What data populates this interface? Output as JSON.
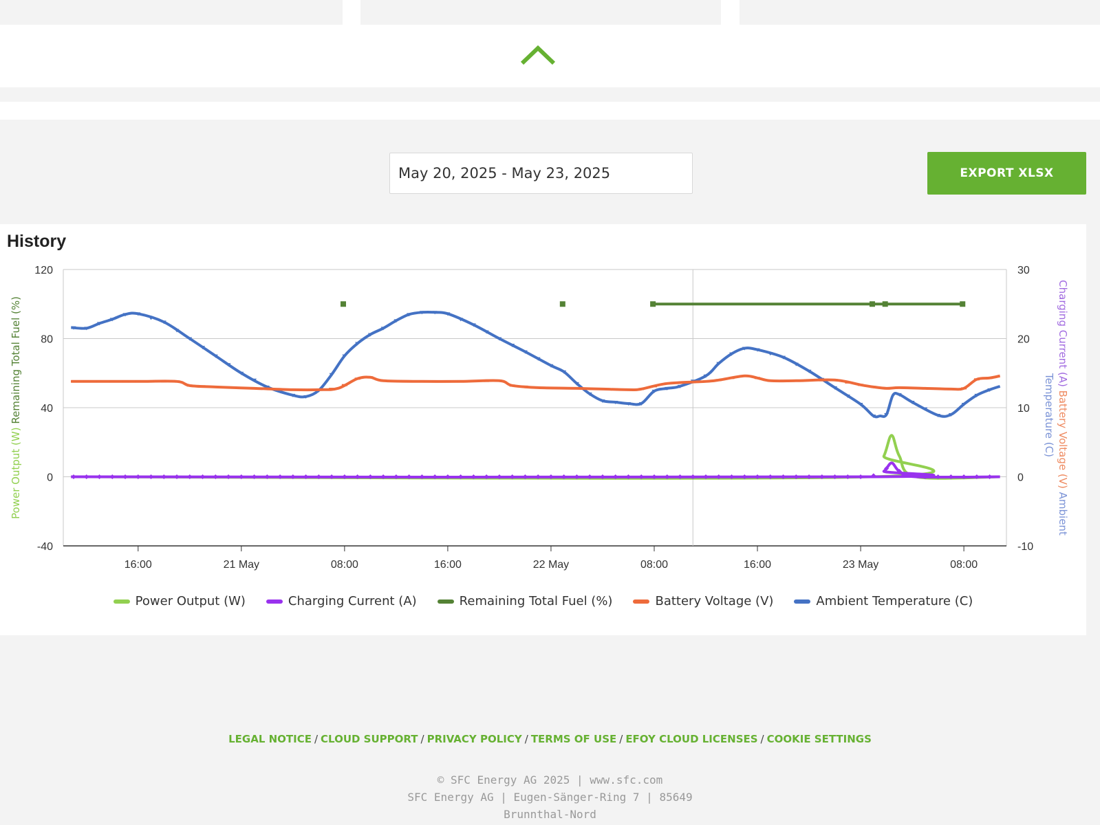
{
  "date_range": {
    "value": "May 20, 2025 - May 23, 2025"
  },
  "export": {
    "label": "EXPORT XLSX"
  },
  "history": {
    "title": "History"
  },
  "chart_data": {
    "type": "line",
    "x_ticks": [
      "16:00",
      "21 May",
      "08:00",
      "16:00",
      "22 May",
      "08:00",
      "16:00",
      "23 May",
      "08:00"
    ],
    "y_left": {
      "label": "Power Output (W) Remaining Total Fuel (%)",
      "ticks": [
        120,
        80,
        40,
        0,
        -40
      ],
      "range": [
        -40,
        120
      ]
    },
    "y_right": {
      "label": "Charging Current (A) Battery Voltage (V) Ambient Temperature (C)",
      "ticks": [
        30,
        20,
        10,
        0,
        -10
      ],
      "range": [
        -10,
        30
      ]
    },
    "x_hours_range": [
      10.2,
      83.3
    ],
    "series": [
      {
        "name": "Power Output (W)",
        "axis": "left",
        "color": "#92d050",
        "x": [
          10.8,
          72.8,
          73.8,
          74.4,
          75.0,
          76.3,
          82.8
        ],
        "y": [
          0,
          0,
          12,
          24,
          12,
          0,
          0
        ]
      },
      {
        "name": "Charging Current (A)",
        "axis": "right",
        "color": "#9932ee",
        "x": [
          10.8,
          72.8,
          73.8,
          74.4,
          75.0,
          76.3,
          82.8
        ],
        "y": [
          0,
          0,
          0.8,
          2,
          0.8,
          0,
          0
        ]
      },
      {
        "name": "Remaining Total Fuel (%)",
        "axis": "left",
        "color": "#548235",
        "segments": [
          {
            "x": [
              31.9
            ],
            "y": [
              100
            ]
          },
          {
            "x": [
              48.9
            ],
            "y": [
              100
            ]
          },
          {
            "x": [
              55.9,
              72.9,
              73.9,
              79.9
            ],
            "y": [
              100,
              100,
              100,
              100
            ]
          }
        ]
      },
      {
        "name": "Battery Voltage (V)",
        "axis": "right",
        "color": "#ee6b3b",
        "x": [
          10.8,
          13,
          16,
          19,
          20,
          22,
          25,
          28,
          30,
          31.5,
          33,
          34,
          35,
          38,
          41,
          44,
          45,
          47,
          50,
          54,
          55,
          57,
          60,
          61,
          63,
          64,
          65,
          67,
          70,
          72,
          73,
          74,
          75,
          77,
          79,
          80,
          81,
          82,
          82.8
        ],
        "y": [
          13.8,
          13.8,
          13.8,
          13.8,
          13.2,
          13,
          12.8,
          12.6,
          12.6,
          12.8,
          14.2,
          14.4,
          13.9,
          13.8,
          13.8,
          13.9,
          13.2,
          12.9,
          12.8,
          12.6,
          12.7,
          13.5,
          13.8,
          14.0,
          14.6,
          14.3,
          13.9,
          13.9,
          14.0,
          13.3,
          13.0,
          12.8,
          12.9,
          12.8,
          12.7,
          12.8,
          14.1,
          14.3,
          14.6
        ]
      },
      {
        "name": "Ambient Temperature (C)",
        "axis": "right",
        "color": "#4472c4",
        "x": [
          10.8,
          12,
          13,
          14,
          15,
          16,
          18,
          20,
          22,
          24,
          26,
          28,
          29,
          30,
          31,
          32,
          33,
          34,
          35,
          36,
          37,
          38,
          39,
          40,
          42,
          44,
          46,
          48,
          49,
          50,
          51,
          52,
          53,
          54,
          55,
          56,
          57,
          58,
          60,
          61,
          62,
          63,
          64,
          66,
          68,
          70,
          72,
          73,
          73.5,
          74,
          74.5,
          75,
          76,
          78,
          79,
          80,
          81,
          82,
          82.8
        ],
        "y": [
          21.6,
          21.5,
          22.2,
          22.8,
          23.5,
          23.6,
          22.4,
          20,
          17.5,
          15,
          13,
          11.8,
          11.6,
          12.5,
          14.8,
          17.5,
          19.3,
          20.6,
          21.5,
          22.6,
          23.5,
          23.8,
          23.8,
          23.6,
          22,
          20,
          18.1,
          16.1,
          15.2,
          13.5,
          12,
          11,
          10.8,
          10.6,
          10.6,
          12.4,
          12.8,
          13.1,
          14.6,
          16.4,
          17.8,
          18.6,
          18.4,
          17.3,
          15.3,
          12.9,
          10.5,
          8.8,
          8.8,
          9,
          11.8,
          11.9,
          10.8,
          8.9,
          9,
          10.5,
          11.8,
          12.6,
          13.1
        ]
      }
    ],
    "legend_placement": "bottom",
    "vertical_line_at": 59.0
  },
  "legend": [
    {
      "label": "Power Output (W)",
      "color": "#92d050"
    },
    {
      "label": "Charging Current (A)",
      "color": "#9932ee"
    },
    {
      "label": "Remaining Total Fuel (%)",
      "color": "#548235"
    },
    {
      "label": "Battery Voltage (V)",
      "color": "#ee6b3b"
    },
    {
      "label": "Ambient Temperature (C)",
      "color": "#4472c4"
    }
  ],
  "footer": {
    "links": [
      "LEGAL NOTICE",
      "CLOUD SUPPORT",
      "PRIVACY POLICY",
      "TERMS OF USE",
      "EFOY CLOUD LICENSES",
      "COOKIE SETTINGS"
    ],
    "separator": "/",
    "line1": "© SFC Energy AG 2025 | www.sfc.com",
    "line2": "SFC Energy AG | Eugen-Sänger-Ring 7 | 85649",
    "line3": "Brunnthal-Nord"
  },
  "icons": {
    "collapse": "chevron-up-icon"
  }
}
